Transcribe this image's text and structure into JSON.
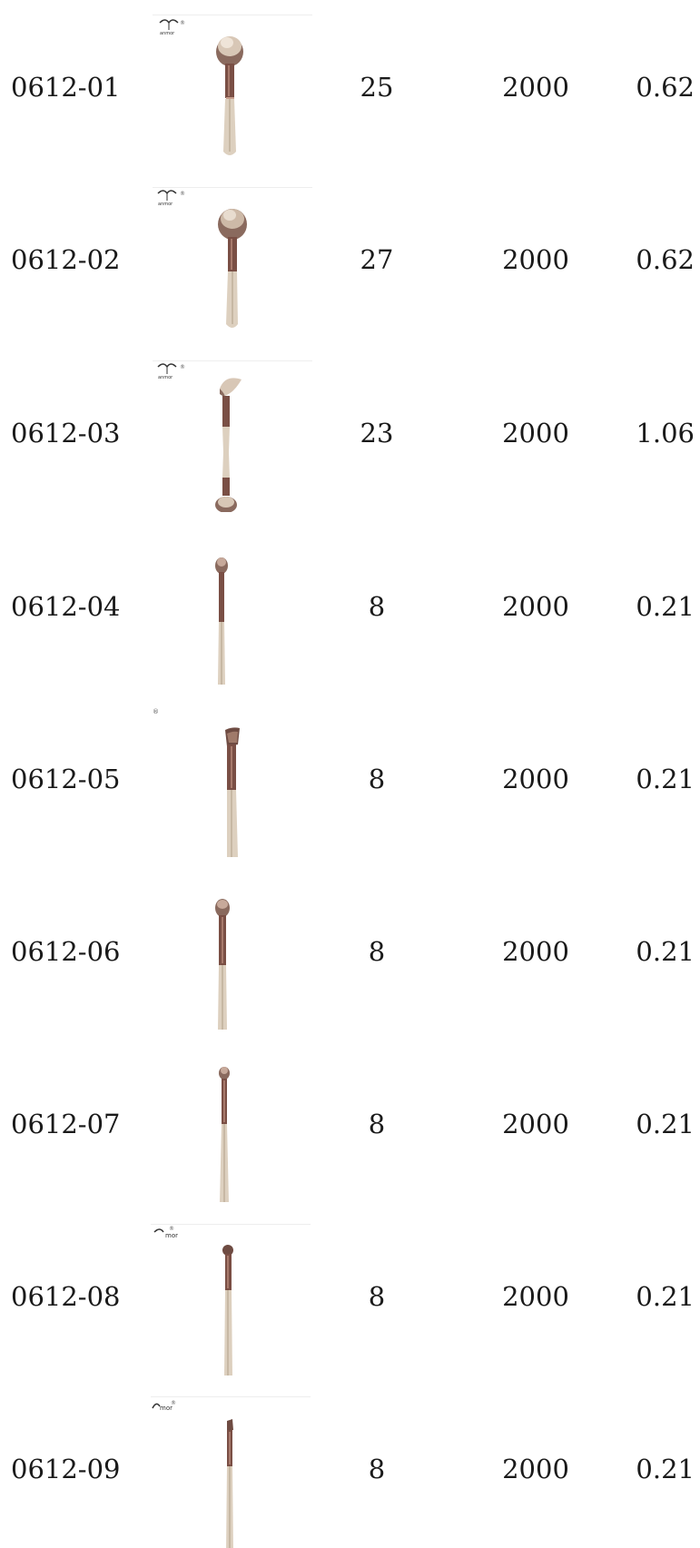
{
  "products": [
    {
      "code": "0612-01",
      "qty": "25",
      "moq": "2000",
      "price": "0.62",
      "icon": "powder-brush-icon"
    },
    {
      "code": "0612-02",
      "qty": "27",
      "moq": "2000",
      "price": "0.62",
      "icon": "powder-brush-icon"
    },
    {
      "code": "0612-03",
      "qty": "23",
      "moq": "2000",
      "price": "1.06",
      "icon": "dual-end-brush-icon"
    },
    {
      "code": "0612-04",
      "qty": "8",
      "moq": "2000",
      "price": "0.21",
      "icon": "eyeshadow-brush-icon"
    },
    {
      "code": "0612-05",
      "qty": "8",
      "moq": "2000",
      "price": "0.21",
      "icon": "angled-brush-icon"
    },
    {
      "code": "0612-06",
      "qty": "8",
      "moq": "2000",
      "price": "0.21",
      "icon": "eyeshadow-brush-icon"
    },
    {
      "code": "0612-07",
      "qty": "8",
      "moq": "2000",
      "price": "0.21",
      "icon": "eyeshadow-brush-icon"
    },
    {
      "code": "0612-08",
      "qty": "8",
      "moq": "2000",
      "price": "0.21",
      "icon": "eyeshadow-brush-icon"
    },
    {
      "code": "0612-09",
      "qty": "8",
      "moq": "2000",
      "price": "0.21",
      "icon": "angled-liner-brush-icon"
    }
  ],
  "colors": {
    "handle": "#ddd0bf",
    "handle_shade": "#c7b8a4",
    "ferrule": "#7a4f45",
    "bristle_dark": "#6e4b42",
    "bristle_light": "#e8dccf",
    "text": "#1a1a1a"
  }
}
